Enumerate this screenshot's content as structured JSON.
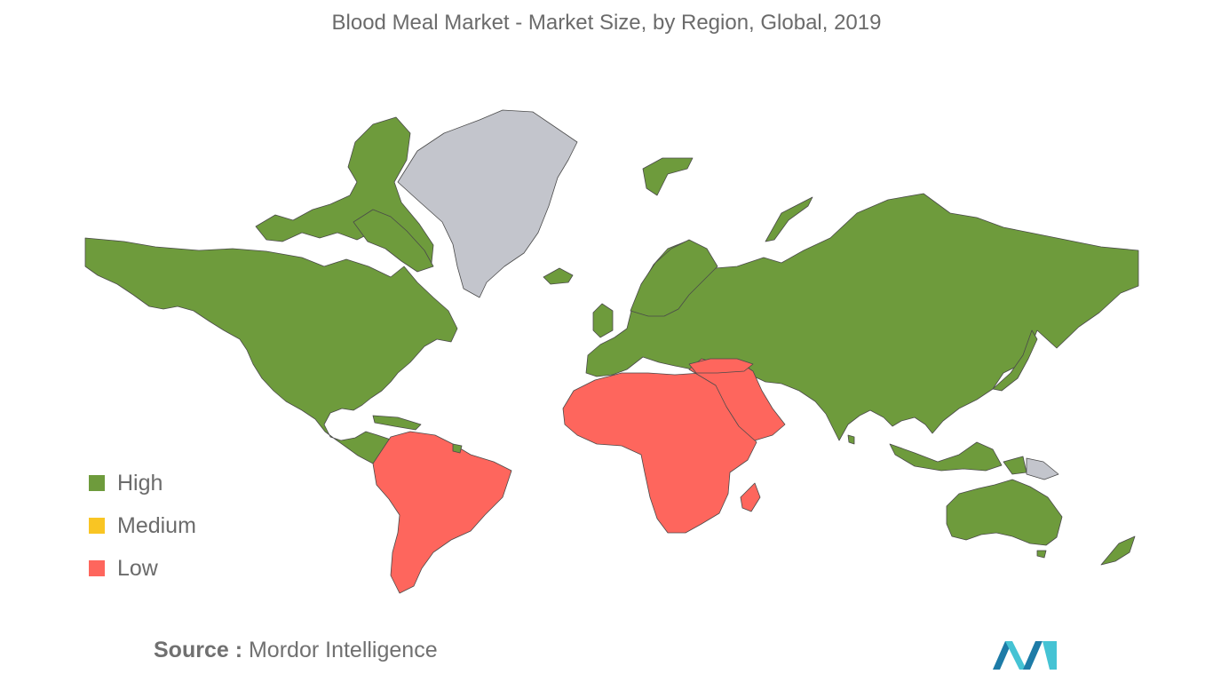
{
  "title": "Blood Meal Market - Market Size, by Region, Global, 2019",
  "legend": [
    {
      "label": "High",
      "color": "#6e9b3c"
    },
    {
      "label": "Medium",
      "color": "#f9c523"
    },
    {
      "label": "Low",
      "color": "#fe665d"
    }
  ],
  "colors": {
    "high": "#6e9b3c",
    "low": "#fe665d",
    "no_data": "#c3c5cc",
    "logo_blue_dark": "#1d7ba7",
    "logo_blue_light": "#45c3d4"
  },
  "regions": [
    {
      "name": "North America",
      "level": "High"
    },
    {
      "name": "Europe",
      "level": "High"
    },
    {
      "name": "Asia-Pacific",
      "level": "High"
    },
    {
      "name": "South America",
      "level": "Low"
    },
    {
      "name": "Middle East and Africa",
      "level": "Low"
    }
  ],
  "source": {
    "label": "Source :",
    "value": "Mordor Intelligence"
  },
  "logo": {
    "icon": "mordor-intelligence-logo-icon"
  }
}
